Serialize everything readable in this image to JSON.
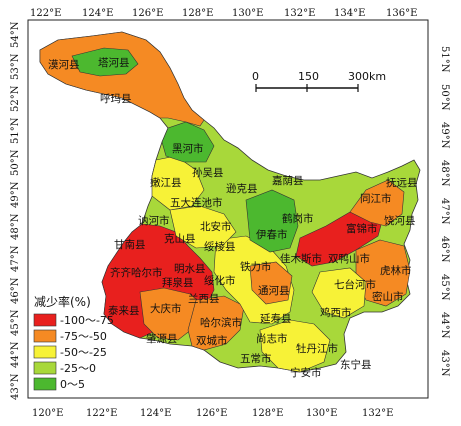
{
  "map": {
    "top_lon_ticks": [
      "122°E",
      "124°E",
      "126°E",
      "128°E",
      "130°E",
      "132°E",
      "134°E",
      "136°E"
    ],
    "bottom_lon_ticks": [
      "120°E",
      "122°E",
      "124°E",
      "126°E",
      "128°E",
      "130°E",
      "132°E"
    ],
    "left_lat_ticks": [
      "54°N",
      "53°N",
      "52°N",
      "51°N",
      "50°N",
      "49°N",
      "48°N",
      "47°N",
      "46°N",
      "45°N",
      "44°N",
      "43°N"
    ],
    "right_lat_ticks": [
      "51°N",
      "50°N",
      "49°N",
      "48°N",
      "47°N",
      "46°N",
      "45°N",
      "44°N",
      "43°N"
    ],
    "scale_bar": {
      "labels": [
        "0",
        "150",
        "300km"
      ]
    },
    "legend": {
      "title": "减少率(%)",
      "items": [
        {
          "label": "-100～-75",
          "color": "#e8201e"
        },
        {
          "label": "-75～-50",
          "color": "#f58a23"
        },
        {
          "label": "-50～-25",
          "color": "#f7f237"
        },
        {
          "label": "-25～0",
          "color": "#a8d83a"
        },
        {
          "label": "0～5",
          "color": "#4cb82f"
        }
      ]
    },
    "counties": [
      {
        "name": "漠河县"
      },
      {
        "name": "塔河县"
      },
      {
        "name": "呼玛县"
      },
      {
        "name": "黑河市"
      },
      {
        "name": "孙吴县"
      },
      {
        "name": "嫩江县"
      },
      {
        "name": "逊克县"
      },
      {
        "name": "嘉荫县"
      },
      {
        "name": "五大连池市"
      },
      {
        "name": "抚远县"
      },
      {
        "name": "同江市"
      },
      {
        "name": "讷河市"
      },
      {
        "name": "北安市"
      },
      {
        "name": "鹤岗市"
      },
      {
        "name": "克山县"
      },
      {
        "name": "伊春市"
      },
      {
        "name": "富锦市"
      },
      {
        "name": "饶河县"
      },
      {
        "name": "甘南县"
      },
      {
        "name": "绥棱县"
      },
      {
        "name": "佳木斯市"
      },
      {
        "name": "双鸭山市"
      },
      {
        "name": "齐齐哈尔市"
      },
      {
        "name": "明水县"
      },
      {
        "name": "铁力市"
      },
      {
        "name": "虎林市"
      },
      {
        "name": "拜泉县"
      },
      {
        "name": "绥化市"
      },
      {
        "name": "七台河市"
      },
      {
        "name": "泰来县"
      },
      {
        "name": "兰西县"
      },
      {
        "name": "通河县"
      },
      {
        "name": "密山市"
      },
      {
        "name": "大庆市"
      },
      {
        "name": "哈尔滨市"
      },
      {
        "name": "延寿县"
      },
      {
        "name": "鸡西市"
      },
      {
        "name": "肇源县"
      },
      {
        "name": "双城市"
      },
      {
        "name": "尚志市"
      },
      {
        "name": "五常市"
      },
      {
        "name": "牡丹江市"
      },
      {
        "name": "东宁县"
      },
      {
        "name": "宁安市"
      }
    ]
  }
}
